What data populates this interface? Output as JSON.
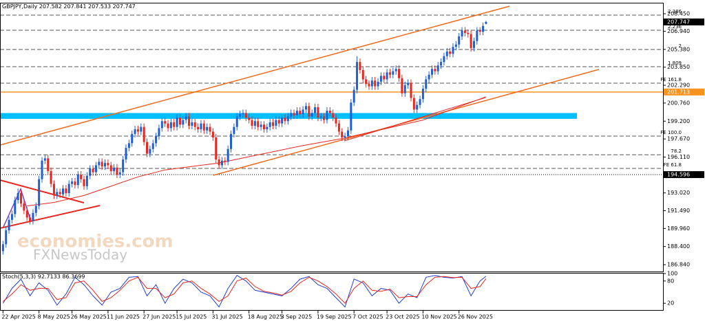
{
  "chart_data": {
    "type": "candlestick",
    "title": "GBPJPY,Daily",
    "up_color": "#1f5fd6",
    "down_color": "#e8261e",
    "xlim": [
      -1,
      220
    ],
    "ylim": [
      186.25,
      209.34
    ],
    "yticks": [
      {
        "value": 208.45,
        "label": "208.450"
      },
      {
        "value": 206.94,
        "label": "206.940"
      },
      {
        "value": 205.38,
        "label": "205.380"
      },
      {
        "value": 203.85,
        "label": "203.850"
      },
      {
        "value": 202.29,
        "label": "202.290"
      },
      {
        "value": 200.76,
        "label": "200.760"
      },
      {
        "value": 199.2,
        "label": "199.200"
      },
      {
        "value": 197.67,
        "label": "197.670"
      },
      {
        "value": 196.11,
        "label": "196.110"
      },
      {
        "value": 193.02,
        "label": "193.020"
      },
      {
        "value": 191.49,
        "label": "191.490"
      },
      {
        "value": 189.96,
        "label": "189.960"
      },
      {
        "value": 188.4,
        "label": "188.400"
      },
      {
        "value": 186.84,
        "label": "186.840"
      }
    ],
    "xticks": [
      {
        "value": 0,
        "label": "22 Apr 2025"
      },
      {
        "value": 12,
        "label": "8 May 2025"
      },
      {
        "value": 23,
        "label": "26 May 2025"
      },
      {
        "value": 35,
        "label": "11 Jun 2025"
      },
      {
        "value": 47,
        "label": "27 Jun 2025"
      },
      {
        "value": 58,
        "label": "15 Jul 2025"
      },
      {
        "value": 70,
        "label": "31 Jul 2025"
      },
      {
        "value": 82,
        "label": "18 Aug 2025"
      },
      {
        "value": 93,
        "label": "3 Sep 2025"
      },
      {
        "value": 105,
        "label": "19 Sep 2025"
      },
      {
        "value": 117,
        "label": "7 Oct 2025"
      },
      {
        "value": 128,
        "label": "23 Oct 2025"
      },
      {
        "value": 140,
        "label": "10 Nov 2025"
      },
      {
        "value": 152,
        "label": "26 Nov 2025"
      }
    ],
    "candles": [
      [
        188.0,
        188.9,
        187.7,
        188.6
      ],
      [
        188.6,
        190.1,
        188.3,
        189.8
      ],
      [
        189.8,
        191.0,
        189.5,
        190.7
      ],
      [
        190.7,
        191.5,
        190.4,
        191.2
      ],
      [
        191.2,
        192.7,
        190.9,
        192.4
      ],
      [
        192.4,
        193.4,
        192.1,
        193.0
      ],
      [
        193.0,
        193.3,
        191.8,
        192.1
      ],
      [
        192.1,
        192.4,
        191.2,
        191.5
      ],
      [
        191.5,
        191.8,
        190.6,
        190.9
      ],
      [
        190.9,
        191.2,
        190.3,
        190.6
      ],
      [
        190.6,
        191.6,
        190.3,
        191.3
      ],
      [
        191.3,
        192.2,
        191.0,
        191.9
      ],
      [
        191.9,
        194.5,
        191.6,
        194.2
      ],
      [
        194.2,
        196.1,
        193.9,
        195.8
      ],
      [
        195.8,
        196.3,
        195.5,
        196.0
      ],
      [
        196.0,
        196.3,
        194.6,
        194.9
      ],
      [
        194.9,
        195.2,
        193.5,
        193.8
      ],
      [
        193.8,
        194.1,
        192.5,
        192.8
      ],
      [
        192.8,
        193.4,
        192.5,
        193.1
      ],
      [
        193.1,
        193.4,
        192.6,
        192.9
      ],
      [
        192.9,
        193.7,
        192.6,
        193.4
      ],
      [
        193.4,
        193.7,
        192.7,
        193.0
      ],
      [
        193.0,
        194.1,
        192.7,
        193.8
      ],
      [
        193.8,
        194.3,
        193.5,
        194.0
      ],
      [
        194.0,
        194.3,
        193.4,
        193.7
      ],
      [
        193.7,
        194.9,
        193.4,
        194.6
      ],
      [
        194.6,
        194.9,
        193.9,
        194.2
      ],
      [
        194.2,
        194.5,
        193.3,
        193.6
      ],
      [
        193.6,
        194.8,
        193.3,
        194.5
      ],
      [
        194.5,
        195.4,
        194.2,
        195.1
      ],
      [
        195.1,
        195.4,
        194.5,
        194.8
      ],
      [
        194.8,
        195.7,
        194.5,
        195.4
      ],
      [
        195.4,
        196.0,
        195.1,
        195.7
      ],
      [
        195.7,
        196.0,
        195.0,
        195.3
      ],
      [
        195.3,
        195.9,
        195.0,
        195.6
      ],
      [
        195.6,
        195.9,
        195.1,
        195.4
      ],
      [
        195.4,
        195.7,
        194.6,
        194.9
      ],
      [
        194.9,
        195.5,
        194.6,
        195.2
      ],
      [
        195.2,
        195.5,
        194.3,
        194.6
      ],
      [
        194.6,
        195.1,
        194.3,
        194.8
      ],
      [
        194.8,
        196.2,
        194.5,
        195.9
      ],
      [
        195.9,
        197.2,
        195.6,
        196.9
      ],
      [
        196.9,
        197.6,
        196.6,
        197.3
      ],
      [
        197.3,
        198.4,
        197.0,
        198.1
      ],
      [
        198.1,
        198.8,
        197.8,
        198.5
      ],
      [
        198.5,
        198.8,
        198.0,
        198.3
      ],
      [
        198.3,
        199.0,
        198.0,
        198.7
      ],
      [
        198.7,
        199.0,
        197.1,
        197.4
      ],
      [
        197.4,
        197.7,
        196.1,
        196.4
      ],
      [
        196.4,
        197.1,
        196.1,
        196.8
      ],
      [
        196.8,
        197.6,
        196.5,
        197.3
      ],
      [
        197.3,
        198.2,
        197.0,
        197.9
      ],
      [
        197.9,
        198.9,
        197.6,
        198.6
      ],
      [
        198.6,
        199.5,
        198.3,
        199.2
      ],
      [
        199.2,
        199.5,
        198.7,
        199.0
      ],
      [
        199.0,
        199.3,
        198.3,
        198.6
      ],
      [
        198.6,
        199.4,
        198.3,
        199.1
      ],
      [
        199.1,
        199.4,
        198.4,
        198.7
      ],
      [
        198.7,
        199.8,
        198.4,
        199.5
      ],
      [
        199.5,
        199.8,
        198.6,
        198.9
      ],
      [
        198.9,
        199.6,
        198.6,
        199.3
      ],
      [
        199.3,
        199.9,
        199.0,
        199.6
      ],
      [
        199.6,
        199.9,
        198.5,
        198.8
      ],
      [
        198.8,
        199.4,
        198.5,
        199.1
      ],
      [
        199.1,
        199.4,
        198.4,
        198.7
      ],
      [
        198.7,
        199.0,
        198.2,
        198.5
      ],
      [
        198.5,
        199.3,
        198.2,
        199.0
      ],
      [
        199.0,
        199.3,
        198.1,
        198.4
      ],
      [
        198.4,
        199.0,
        198.1,
        198.7
      ],
      [
        198.7,
        199.0,
        198.0,
        198.3
      ],
      [
        198.3,
        198.6,
        197.5,
        197.8
      ],
      [
        197.8,
        198.1,
        195.6,
        195.9
      ],
      [
        195.9,
        196.2,
        195.1,
        195.4
      ],
      [
        195.4,
        196.1,
        195.1,
        195.8
      ],
      [
        195.8,
        196.1,
        195.4,
        195.7
      ],
      [
        195.7,
        197.1,
        195.4,
        196.8
      ],
      [
        196.8,
        198.4,
        196.5,
        198.1
      ],
      [
        198.1,
        199.0,
        197.8,
        198.7
      ],
      [
        198.7,
        199.9,
        198.4,
        199.6
      ],
      [
        199.6,
        200.1,
        199.3,
        199.8
      ],
      [
        199.8,
        200.2,
        199.5,
        199.9
      ],
      [
        199.9,
        200.2,
        199.2,
        199.5
      ],
      [
        199.5,
        199.8,
        199.0,
        199.3
      ],
      [
        199.3,
        199.6,
        198.5,
        198.8
      ],
      [
        198.8,
        199.5,
        198.5,
        199.2
      ],
      [
        199.2,
        199.5,
        198.4,
        198.7
      ],
      [
        198.7,
        199.2,
        198.4,
        198.9
      ],
      [
        198.9,
        199.2,
        198.2,
        198.5
      ],
      [
        198.5,
        199.0,
        198.2,
        198.7
      ],
      [
        198.7,
        199.4,
        198.4,
        199.1
      ],
      [
        199.1,
        199.4,
        198.5,
        198.8
      ],
      [
        198.8,
        199.6,
        198.5,
        199.3
      ],
      [
        199.3,
        199.6,
        198.7,
        199.0
      ],
      [
        199.0,
        199.8,
        198.7,
        199.5
      ],
      [
        199.5,
        199.8,
        198.9,
        199.2
      ],
      [
        199.2,
        199.9,
        198.9,
        199.6
      ],
      [
        199.6,
        200.2,
        199.3,
        199.9
      ],
      [
        199.9,
        200.2,
        199.4,
        199.7
      ],
      [
        199.7,
        200.4,
        199.4,
        200.1
      ],
      [
        200.1,
        200.4,
        199.5,
        199.8
      ],
      [
        199.8,
        200.5,
        199.5,
        200.2
      ],
      [
        200.2,
        200.8,
        199.9,
        200.5
      ],
      [
        200.5,
        200.8,
        199.3,
        199.6
      ],
      [
        199.6,
        200.2,
        199.3,
        199.9
      ],
      [
        199.9,
        200.7,
        199.6,
        200.4
      ],
      [
        200.4,
        200.7,
        199.2,
        199.5
      ],
      [
        199.5,
        199.9,
        199.2,
        199.6
      ],
      [
        199.6,
        199.9,
        199.0,
        199.3
      ],
      [
        199.3,
        200.4,
        199.0,
        200.1
      ],
      [
        200.1,
        200.4,
        199.6,
        199.9
      ],
      [
        199.9,
        200.2,
        199.2,
        199.5
      ],
      [
        199.5,
        199.8,
        198.7,
        199.0
      ],
      [
        199.0,
        199.3,
        198.0,
        198.3
      ],
      [
        198.3,
        198.6,
        197.5,
        197.8
      ],
      [
        197.8,
        198.2,
        197.5,
        197.9
      ],
      [
        197.9,
        198.7,
        197.6,
        198.4
      ],
      [
        198.4,
        201.1,
        198.1,
        200.8
      ],
      [
        200.8,
        202.2,
        200.5,
        201.9
      ],
      [
        201.9,
        204.8,
        201.6,
        204.3
      ],
      [
        204.3,
        204.6,
        203.3,
        203.6
      ],
      [
        203.6,
        203.9,
        202.5,
        202.8
      ],
      [
        202.8,
        203.1,
        202.1,
        202.4
      ],
      [
        202.4,
        202.7,
        201.9,
        202.2
      ],
      [
        202.2,
        203.0,
        201.9,
        202.7
      ],
      [
        202.7,
        203.0,
        201.9,
        202.2
      ],
      [
        202.2,
        202.9,
        201.9,
        202.6
      ],
      [
        202.6,
        203.4,
        202.3,
        203.1
      ],
      [
        203.1,
        203.4,
        202.5,
        202.8
      ],
      [
        202.8,
        203.7,
        202.5,
        203.4
      ],
      [
        203.4,
        203.7,
        202.9,
        203.2
      ],
      [
        203.2,
        203.8,
        202.9,
        203.5
      ],
      [
        203.5,
        204.0,
        203.2,
        203.7
      ],
      [
        203.7,
        204.0,
        202.6,
        202.9
      ],
      [
        202.9,
        203.2,
        201.3,
        201.6
      ],
      [
        201.6,
        202.6,
        201.3,
        202.3
      ],
      [
        202.3,
        202.8,
        202.0,
        202.5
      ],
      [
        202.5,
        202.8,
        200.9,
        201.2
      ],
      [
        201.2,
        201.5,
        199.9,
        200.2
      ],
      [
        200.2,
        200.9,
        199.9,
        200.6
      ],
      [
        200.6,
        201.4,
        200.3,
        201.1
      ],
      [
        201.1,
        202.3,
        200.8,
        202.0
      ],
      [
        202.0,
        203.1,
        201.7,
        202.8
      ],
      [
        202.8,
        203.5,
        202.5,
        203.2
      ],
      [
        203.2,
        204.0,
        202.9,
        203.7
      ],
      [
        203.7,
        204.0,
        203.2,
        203.5
      ],
      [
        203.5,
        204.3,
        203.2,
        204.0
      ],
      [
        204.0,
        204.6,
        203.7,
        204.3
      ],
      [
        204.3,
        205.1,
        204.0,
        204.8
      ],
      [
        204.8,
        205.5,
        204.5,
        205.2
      ],
      [
        205.2,
        205.5,
        204.7,
        205.0
      ],
      [
        205.0,
        205.9,
        204.7,
        205.6
      ],
      [
        205.6,
        206.1,
        205.3,
        205.8
      ],
      [
        205.8,
        206.8,
        205.5,
        206.5
      ],
      [
        206.5,
        207.3,
        206.2,
        207.0
      ],
      [
        207.0,
        207.3,
        206.5,
        206.8
      ],
      [
        206.8,
        207.1,
        206.4,
        206.7
      ],
      [
        206.7,
        207.0,
        205.2,
        205.5
      ],
      [
        205.5,
        206.4,
        205.2,
        206.1
      ],
      [
        206.1,
        207.3,
        205.8,
        207.0
      ],
      [
        207.0,
        207.3,
        206.6,
        206.9
      ],
      [
        206.9,
        207.7,
        206.6,
        207.4
      ],
      [
        207.582,
        207.841,
        207.533,
        207.747
      ]
    ],
    "current_color": "#000000",
    "marked_levels": [
      {
        "value": 201.713,
        "color": "#f7931e",
        "style": "solid"
      },
      {
        "value": 194.596,
        "color": "#000000",
        "style": "dotted"
      }
    ],
    "fib_levels": [
      {
        "label": "2.386",
        "value": 208.33
      },
      {
        "label": "2.236",
        "value": 207.03
      },
      {
        "label": "2",
        "value": 205.37
      },
      {
        "label": "1.809",
        "value": 203.89
      },
      {
        "label": "FE 161.8",
        "value": 202.47
      },
      {
        "label": "FE 100.0",
        "value": 197.91
      },
      {
        "label": "78.2",
        "value": 196.31
      },
      {
        "label": "FE 61.8",
        "value": 195.13
      }
    ],
    "zone": {
      "range": [
        199.4,
        199.9
      ],
      "color": "#00bfff"
    },
    "ma": {
      "color": "#e8261e",
      "x": [
        8,
        17,
        27,
        36,
        45,
        54,
        63,
        72,
        85,
        100,
        113,
        125,
        140,
        161
      ],
      "values": [
        191.9,
        192.2,
        192.8,
        193.6,
        194.4,
        195.0,
        195.3,
        195.6,
        196.3,
        197.1,
        197.7,
        198.4,
        199.3,
        201.3
      ]
    },
    "stoch": {
      "title": "Stoch(5,3,3)",
      "ylim": [
        0,
        100
      ],
      "yticks": [
        100,
        80,
        20
      ],
      "x": [
        0,
        3,
        6,
        9,
        12,
        15,
        18,
        21,
        24,
        27,
        30,
        33,
        36,
        39,
        42,
        45,
        48,
        51,
        54,
        57,
        60,
        63,
        66,
        69,
        72,
        75,
        78,
        81,
        84,
        87,
        90,
        93,
        96,
        99,
        102,
        105,
        108,
        111,
        114,
        117,
        120,
        123,
        126,
        129,
        132,
        135,
        138,
        141,
        144,
        147,
        150,
        153,
        156,
        159,
        161
      ],
      "series": [
        {
          "color": "#1f3fd6",
          "values": [
            20,
            60,
            85,
            40,
            75,
            55,
            15,
            45,
            90,
            70,
            40,
            15,
            50,
            60,
            90,
            92,
            40,
            70,
            20,
            60,
            85,
            75,
            50,
            40,
            10,
            60,
            95,
            80,
            55,
            50,
            45,
            40,
            60,
            85,
            92,
            70,
            60,
            35,
            10,
            85,
            75,
            40,
            60,
            55,
            20,
            45,
            35,
            90,
            95,
            90,
            88,
            92,
            40,
            80,
            92.7133
          ]
        },
        {
          "color": "#e8261e",
          "values": [
            25,
            45,
            70,
            55,
            60,
            60,
            30,
            35,
            75,
            80,
            55,
            25,
            35,
            55,
            80,
            90,
            60,
            60,
            35,
            45,
            75,
            80,
            60,
            45,
            25,
            40,
            80,
            88,
            65,
            52,
            48,
            42,
            52,
            75,
            90,
            80,
            65,
            45,
            20,
            60,
            80,
            55,
            52,
            58,
            35,
            38,
            38,
            70,
            90,
            92,
            89,
            90,
            60,
            65,
            86.3699
          ]
        }
      ]
    },
    "watermark": [
      "economies.com",
      "FXNewsToday"
    ]
  }
}
